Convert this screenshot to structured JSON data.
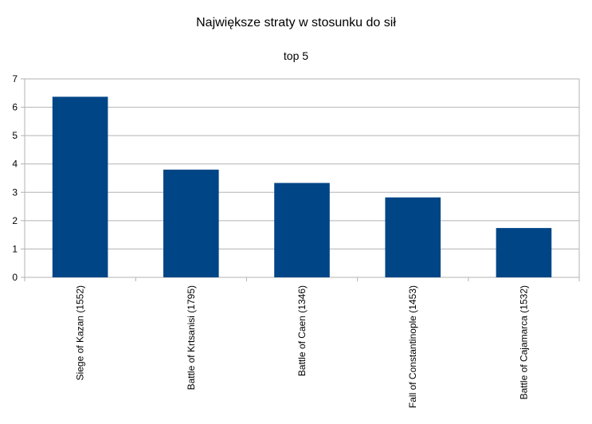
{
  "chart_data": {
    "type": "bar",
    "title": "Największe straty w stosunku do sił",
    "subtitle": "top 5",
    "categories": [
      "Siege of Kazan (1552)",
      "Battle of Krtsanisi (1795)",
      "Battle of Caen (1346)",
      "Fall of Constantinople (1453)",
      "Battle of Cajamarca (1532)"
    ],
    "values": [
      6.37,
      3.8,
      3.33,
      2.82,
      1.74
    ],
    "ylim": [
      0,
      7
    ],
    "yticks": [
      "0",
      "1",
      "2",
      "3",
      "4",
      "5",
      "6",
      "7"
    ],
    "grid": true,
    "legend": "none",
    "bar_color": "#004586"
  }
}
